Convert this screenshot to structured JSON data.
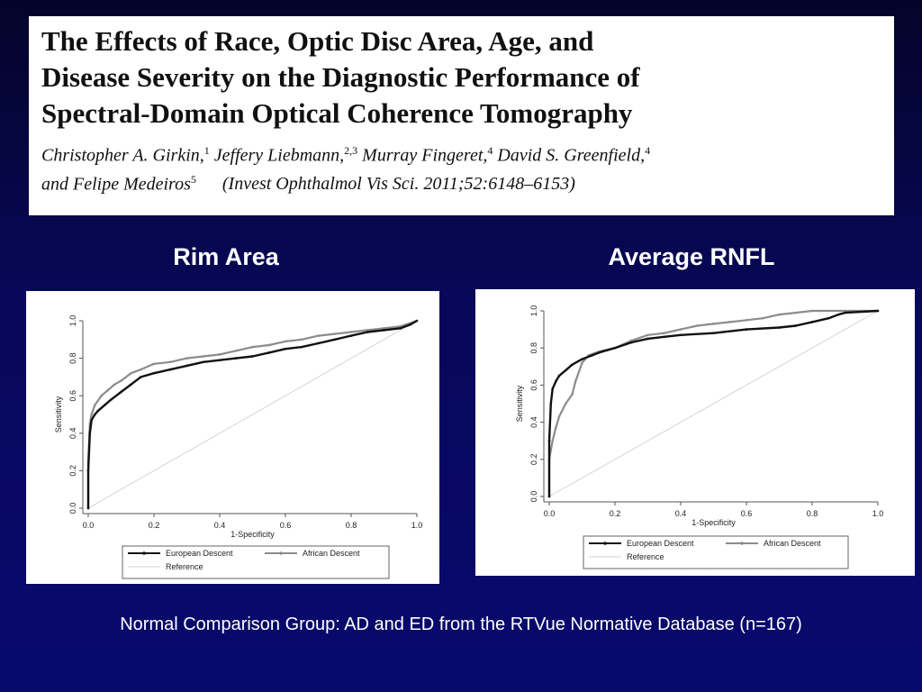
{
  "paper": {
    "title_lines": [
      "The Effects of Race, Optic Disc Area, Age, and",
      "Disease Severity on the Diagnostic Performance of",
      "Spectral-Domain Optical Coherence Tomography"
    ],
    "authors": [
      {
        "name": "Christopher A. Girkin,",
        "sup": "1"
      },
      {
        "name": "Jeffery Liebmann,",
        "sup": "2,3"
      },
      {
        "name": "Murray Fingeret,",
        "sup": "4"
      },
      {
        "name": "David S. Greenfield,",
        "sup": "4"
      },
      {
        "name": "and Felipe Medeiros",
        "sup": "5"
      }
    ],
    "citation": "(Invest Ophthalmol Vis Sci. 2011;52:6148–6153)"
  },
  "charts": {
    "left_heading": "Rim Area",
    "right_heading": "Average RNFL"
  },
  "footer": "Normal Comparison Group: AD and ED from the RTVue Normative Database (n=167)",
  "colors": {
    "european": "#111111",
    "african": "#8c8c8c",
    "reference": "#d4d4d4"
  },
  "chart_data": [
    {
      "type": "line",
      "title": "Rim Area",
      "xlabel": "1-Specificity",
      "ylabel": "Sensitivity",
      "xlim": [
        0,
        1
      ],
      "ylim": [
        0,
        1
      ],
      "xticks": [
        "0.0",
        "0.2",
        "0.4",
        "0.6",
        "0.8",
        "1.0"
      ],
      "yticks": [
        "0.0",
        "0.2",
        "0.4",
        "0.6",
        "0.8",
        "1.0"
      ],
      "legend": [
        "European Descent",
        "African Descent",
        "Reference"
      ],
      "legend_position": "bottom",
      "series": [
        {
          "name": "European Descent",
          "x": [
            0,
            0,
            0.005,
            0.01,
            0.02,
            0.03,
            0.05,
            0.07,
            0.1,
            0.13,
            0.16,
            0.2,
            0.25,
            0.3,
            0.35,
            0.4,
            0.45,
            0.5,
            0.55,
            0.6,
            0.65,
            0.7,
            0.75,
            0.8,
            0.85,
            0.9,
            0.95,
            0.98,
            1.0
          ],
          "y": [
            0,
            0.2,
            0.4,
            0.47,
            0.5,
            0.52,
            0.55,
            0.58,
            0.62,
            0.66,
            0.7,
            0.72,
            0.74,
            0.76,
            0.78,
            0.79,
            0.8,
            0.81,
            0.83,
            0.85,
            0.86,
            0.88,
            0.9,
            0.92,
            0.94,
            0.95,
            0.96,
            0.98,
            1.0
          ]
        },
        {
          "name": "African Descent",
          "x": [
            0,
            0,
            0.005,
            0.01,
            0.02,
            0.04,
            0.06,
            0.08,
            0.1,
            0.13,
            0.16,
            0.2,
            0.25,
            0.3,
            0.35,
            0.4,
            0.45,
            0.5,
            0.55,
            0.6,
            0.65,
            0.7,
            0.75,
            0.8,
            0.85,
            0.9,
            0.95,
            1.0
          ],
          "y": [
            0,
            0.25,
            0.45,
            0.5,
            0.55,
            0.6,
            0.63,
            0.66,
            0.68,
            0.72,
            0.74,
            0.77,
            0.78,
            0.8,
            0.81,
            0.82,
            0.84,
            0.86,
            0.87,
            0.89,
            0.9,
            0.92,
            0.93,
            0.94,
            0.95,
            0.96,
            0.97,
            1.0
          ]
        },
        {
          "name": "Reference",
          "x": [
            0,
            1
          ],
          "y": [
            0,
            1
          ]
        }
      ]
    },
    {
      "type": "line",
      "title": "Average RNFL",
      "xlabel": "1-Specificity",
      "ylabel": "Sensitivity",
      "xlim": [
        0,
        1
      ],
      "ylim": [
        0,
        1
      ],
      "xticks": [
        "0.0",
        "0.2",
        "0.4",
        "0.6",
        "0.8",
        "1.0"
      ],
      "yticks": [
        "0.0",
        "0.2",
        "0.4",
        "0.6",
        "0.8",
        "1.0"
      ],
      "legend": [
        "European Descent",
        "African Descent",
        "Reference"
      ],
      "legend_position": "bottom",
      "series": [
        {
          "name": "European Descent",
          "x": [
            0,
            0,
            0.005,
            0.01,
            0.02,
            0.03,
            0.05,
            0.07,
            0.1,
            0.13,
            0.16,
            0.2,
            0.25,
            0.3,
            0.35,
            0.4,
            0.5,
            0.6,
            0.7,
            0.75,
            0.8,
            0.85,
            0.88,
            0.9,
            1.0
          ],
          "y": [
            0,
            0.3,
            0.5,
            0.58,
            0.62,
            0.65,
            0.68,
            0.71,
            0.74,
            0.76,
            0.78,
            0.8,
            0.83,
            0.85,
            0.86,
            0.87,
            0.88,
            0.9,
            0.91,
            0.92,
            0.94,
            0.96,
            0.98,
            0.99,
            1.0
          ]
        },
        {
          "name": "African Descent",
          "x": [
            0,
            0,
            0.005,
            0.01,
            0.02,
            0.03,
            0.05,
            0.07,
            0.08,
            0.1,
            0.12,
            0.15,
            0.2,
            0.25,
            0.3,
            0.35,
            0.4,
            0.45,
            0.5,
            0.55,
            0.6,
            0.65,
            0.7,
            0.8,
            0.9,
            1.0
          ],
          "y": [
            0,
            0.2,
            0.25,
            0.3,
            0.37,
            0.43,
            0.5,
            0.55,
            0.62,
            0.72,
            0.76,
            0.78,
            0.8,
            0.84,
            0.87,
            0.88,
            0.9,
            0.92,
            0.93,
            0.94,
            0.95,
            0.96,
            0.98,
            1.0,
            1.0,
            1.0
          ]
        },
        {
          "name": "Reference",
          "x": [
            0,
            1
          ],
          "y": [
            0,
            1
          ]
        }
      ]
    }
  ]
}
